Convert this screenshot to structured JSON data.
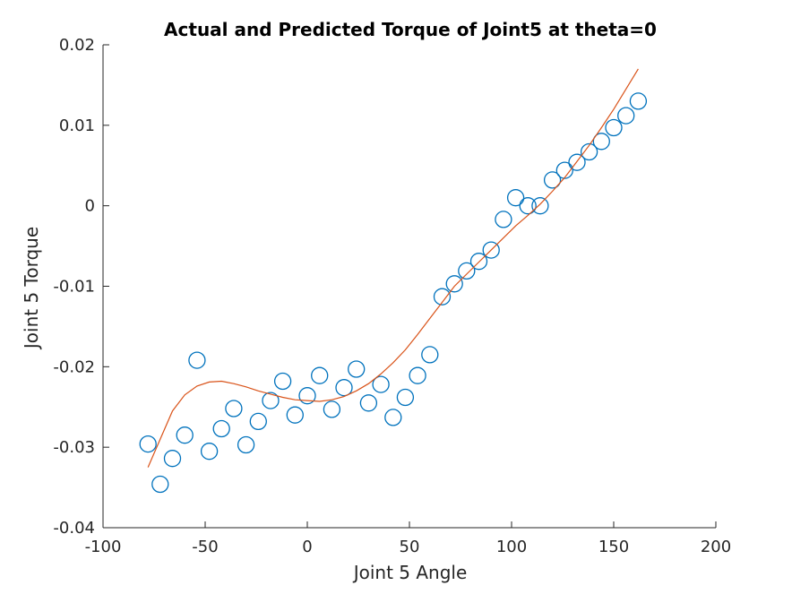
{
  "chart_data": {
    "type": "scatter",
    "title": "Actual and Predicted Torque of Joint5 at theta=0",
    "xlabel": "Joint 5 Angle",
    "ylabel": "Joint 5 Torque",
    "xlim": [
      -100,
      200
    ],
    "ylim": [
      -0.04,
      0.02
    ],
    "xticks": [
      -100,
      -50,
      0,
      50,
      100,
      150,
      200
    ],
    "xtick_labels": [
      "-100",
      "-50",
      "0",
      "50",
      "100",
      "150",
      "200"
    ],
    "yticks": [
      -0.04,
      -0.03,
      -0.02,
      -0.01,
      0,
      0.01,
      0.02
    ],
    "ytick_labels": [
      "-0.04",
      "-0.03",
      "-0.02",
      "-0.01",
      "0",
      "0.01",
      "0.02"
    ],
    "grid": false,
    "series": [
      {
        "marker": "circle",
        "color": "#0072BD",
        "x": [
          -78,
          -72,
          -66,
          -60,
          -54,
          -48,
          -42,
          -36,
          -30,
          -24,
          -18,
          -12,
          -6,
          0,
          6,
          12,
          18,
          24,
          30,
          36,
          42,
          48,
          54,
          60,
          66,
          72,
          78,
          84,
          90,
          96,
          102,
          108,
          114,
          120,
          126,
          132,
          138,
          144,
          150,
          156,
          162
        ],
        "y": [
          -0.0296,
          -0.0346,
          -0.0314,
          -0.0285,
          -0.0192,
          -0.0305,
          -0.0277,
          -0.0252,
          -0.0297,
          -0.0268,
          -0.0242,
          -0.0218,
          -0.026,
          -0.0236,
          -0.0211,
          -0.0253,
          -0.0226,
          -0.0203,
          -0.0245,
          -0.0222,
          -0.0263,
          -0.0238,
          -0.0211,
          -0.0185,
          -0.0113,
          -0.0097,
          -0.0081,
          -0.0069,
          -0.0055,
          -0.0017,
          0.001,
          0.0,
          0.0,
          0.0032,
          0.0044,
          0.0054,
          0.0067,
          0.008,
          0.0097,
          0.0112,
          0.013
        ]
      },
      {
        "marker": "line",
        "color": "#D95319",
        "x": [
          -78,
          -72,
          -66,
          -60,
          -54,
          -48,
          -42,
          -36,
          -30,
          -24,
          -18,
          -12,
          -6,
          0,
          6,
          12,
          18,
          24,
          30,
          36,
          42,
          48,
          54,
          60,
          66,
          72,
          78,
          84,
          90,
          96,
          102,
          108,
          114,
          120,
          126,
          132,
          138,
          144,
          150,
          156,
          162
        ],
        "y": [
          -0.0325,
          -0.029,
          -0.0255,
          -0.0235,
          -0.0224,
          -0.0219,
          -0.0218,
          -0.0221,
          -0.0225,
          -0.023,
          -0.0234,
          -0.0238,
          -0.0241,
          -0.0242,
          -0.0243,
          -0.0241,
          -0.0237,
          -0.023,
          -0.0221,
          -0.0209,
          -0.0195,
          -0.0179,
          -0.016,
          -0.014,
          -0.012,
          -0.01,
          -0.0085,
          -0.007,
          -0.0055,
          -0.004,
          -0.0025,
          -0.0012,
          0.0002,
          0.0018,
          0.0035,
          0.0055,
          0.0075,
          0.0097,
          0.012,
          0.0145,
          0.017
        ]
      }
    ]
  }
}
